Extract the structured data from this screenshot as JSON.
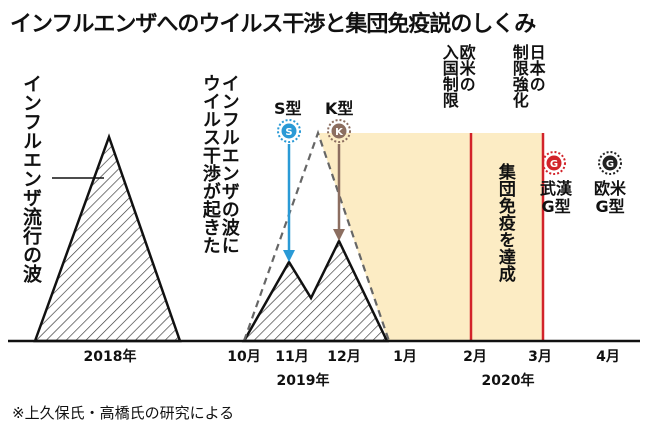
{
  "title": "インフルエンザへのウイルス干渉と集団免疫説のしくみ",
  "labels": {
    "flu_wave": "インフルエンザ流行の波",
    "interference": [
      "インフルエンザの波に",
      "ウイルス干渉が起きた"
    ],
    "s_type": "S型",
    "k_type": "K型",
    "s_badge": "S",
    "k_badge": "K",
    "g_badge": "G",
    "entry_restriction": [
      "欧米の",
      "入国制限"
    ],
    "japan_restriction": [
      "日本の",
      "制限強化"
    ],
    "herd_immunity": "集団免疫を達成",
    "wuhan_g": [
      "武漢",
      "G型"
    ],
    "western_g": [
      "欧米",
      "G型"
    ]
  },
  "axis": {
    "months": [
      "10月",
      "11月",
      "12月",
      "1月",
      "2月",
      "3月",
      "4月"
    ],
    "years": [
      "2018年",
      "2019年",
      "2020年"
    ]
  },
  "note": "※上久保氏・高橋氏の研究による",
  "colors": {
    "immunity_fill": "#fcecc4",
    "restriction_line": "#d2232a",
    "s_color": "#2a9ad6",
    "k_color": "#8c6e60",
    "g_red": "#d2232a",
    "g_dark": "#222222"
  }
}
